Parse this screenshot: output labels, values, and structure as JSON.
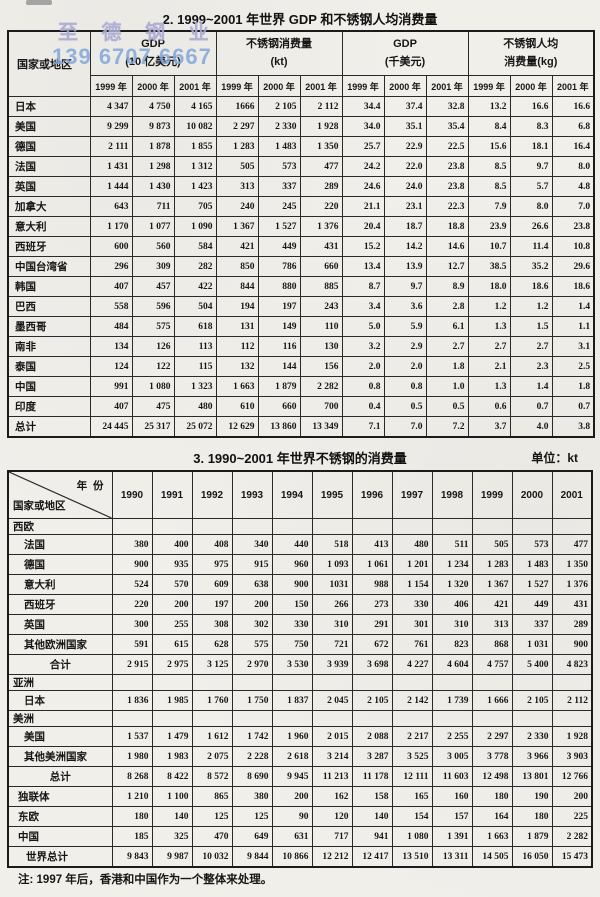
{
  "watermark": {
    "line1": "至 德 钢 业",
    "line2": "139 6707 6667"
  },
  "footnote": "注: 1997 年后，香港和中国作为一个整体来处理。",
  "table1": {
    "title": "2. 1999~2001 年世界 GDP 和不锈钢人均消费量",
    "corner": "国家或地区",
    "groups": [
      {
        "line1": "GDP",
        "line2": "(10 亿美元)"
      },
      {
        "line1": "不锈钢消费量",
        "line2": "(kt)"
      },
      {
        "line1": "GDP",
        "line2": "(千美元)"
      },
      {
        "line1": "不锈钢人均",
        "line2": "消费量(kg)"
      }
    ],
    "sub_headers": [
      "1999 年",
      "2000 年",
      "2001 年",
      "1999 年",
      "2000 年",
      "2001 年",
      "1999 年",
      "2000 年",
      "2001 年",
      "1999 年",
      "2000 年",
      "2001 年"
    ],
    "rows": [
      {
        "label": "日本",
        "type": "country",
        "values": [
          "4 347",
          "4 750",
          "4 165",
          "1666",
          "2 105",
          "2 112",
          "34.4",
          "37.4",
          "32.8",
          "13.2",
          "16.6",
          "16.6"
        ]
      },
      {
        "label": "美国",
        "type": "country",
        "values": [
          "9 299",
          "9 873",
          "10 082",
          "2 297",
          "2 330",
          "1 928",
          "34.0",
          "35.1",
          "35.4",
          "8.4",
          "8.3",
          "6.8"
        ]
      },
      {
        "label": "德国",
        "type": "country",
        "values": [
          "2 111",
          "1 878",
          "1 855",
          "1 283",
          "1 483",
          "1 350",
          "25.7",
          "22.9",
          "22.5",
          "15.6",
          "18.1",
          "16.4"
        ]
      },
      {
        "label": "法国",
        "type": "country",
        "values": [
          "1 431",
          "1 298",
          "1 312",
          "505",
          "573",
          "477",
          "24.2",
          "22.0",
          "23.8",
          "8.5",
          "9.7",
          "8.0"
        ]
      },
      {
        "label": "英国",
        "type": "country",
        "values": [
          "1 444",
          "1 430",
          "1 423",
          "313",
          "337",
          "289",
          "24.6",
          "24.0",
          "23.8",
          "8.5",
          "5.7",
          "4.8"
        ]
      },
      {
        "label": "加拿大",
        "type": "country",
        "values": [
          "643",
          "711",
          "705",
          "240",
          "245",
          "220",
          "21.1",
          "23.1",
          "22.3",
          "7.9",
          "8.0",
          "7.0"
        ]
      },
      {
        "label": "意大利",
        "type": "country",
        "values": [
          "1 170",
          "1 077",
          "1 090",
          "1 367",
          "1 527",
          "1 376",
          "20.4",
          "18.7",
          "18.8",
          "23.9",
          "26.6",
          "23.8"
        ]
      },
      {
        "label": "西班牙",
        "type": "country",
        "values": [
          "600",
          "560",
          "584",
          "421",
          "449",
          "431",
          "15.2",
          "14.2",
          "14.6",
          "10.7",
          "11.4",
          "10.8"
        ]
      },
      {
        "label": "中国台湾省",
        "type": "country",
        "values": [
          "296",
          "309",
          "282",
          "850",
          "786",
          "660",
          "13.4",
          "13.9",
          "12.7",
          "38.5",
          "35.2",
          "29.6"
        ]
      },
      {
        "label": "韩国",
        "type": "country",
        "values": [
          "407",
          "457",
          "422",
          "844",
          "880",
          "885",
          "8.7",
          "9.7",
          "8.9",
          "18.0",
          "18.6",
          "18.6"
        ]
      },
      {
        "label": "巴西",
        "type": "country",
        "values": [
          "558",
          "596",
          "504",
          "194",
          "197",
          "243",
          "3.4",
          "3.6",
          "2.8",
          "1.2",
          "1.2",
          "1.4"
        ]
      },
      {
        "label": "墨西哥",
        "type": "country",
        "values": [
          "484",
          "575",
          "618",
          "131",
          "149",
          "110",
          "5.0",
          "5.9",
          "6.1",
          "1.3",
          "1.5",
          "1.1"
        ]
      },
      {
        "label": "南非",
        "type": "country",
        "values": [
          "134",
          "126",
          "113",
          "112",
          "116",
          "130",
          "3.2",
          "2.9",
          "2.7",
          "2.7",
          "2.7",
          "3.1"
        ]
      },
      {
        "label": "泰国",
        "type": "country",
        "values": [
          "124",
          "122",
          "115",
          "132",
          "144",
          "156",
          "2.0",
          "2.0",
          "1.8",
          "2.1",
          "2.3",
          "2.5"
        ]
      },
      {
        "label": "中国",
        "type": "country",
        "values": [
          "991",
          "1 080",
          "1 323",
          "1 663",
          "1 879",
          "2 282",
          "0.8",
          "0.8",
          "1.0",
          "1.3",
          "1.4",
          "1.8"
        ]
      },
      {
        "label": "印度",
        "type": "country",
        "values": [
          "407",
          "475",
          "480",
          "610",
          "660",
          "700",
          "0.4",
          "0.5",
          "0.5",
          "0.6",
          "0.7",
          "0.7"
        ]
      },
      {
        "label": "总计",
        "type": "grand",
        "values": [
          "24 445",
          "25 317",
          "25 072",
          "12 629",
          "13 860",
          "13 349",
          "7.1",
          "7.0",
          "7.2",
          "3.7",
          "4.0",
          "3.8"
        ]
      }
    ]
  },
  "table2": {
    "title": "3. 1990~2001 年世界不锈钢的消费量",
    "unit": "单位：kt",
    "corner_top": "年  份",
    "corner_bottom": "国家或地区",
    "years": [
      "1990",
      "1991",
      "1992",
      "1993",
      "1994",
      "1995",
      "1996",
      "1997",
      "1998",
      "1999",
      "2000",
      "2001"
    ],
    "rows": [
      {
        "label": "西欧",
        "type": "section",
        "values": []
      },
      {
        "label": "法国",
        "type": "country",
        "values": [
          "380",
          "400",
          "408",
          "340",
          "440",
          "518",
          "413",
          "480",
          "511",
          "505",
          "573",
          "477"
        ]
      },
      {
        "label": "德国",
        "type": "country",
        "values": [
          "900",
          "935",
          "975",
          "915",
          "960",
          "1 093",
          "1 061",
          "1 201",
          "1 234",
          "1 283",
          "1 483",
          "1 350"
        ]
      },
      {
        "label": "意大利",
        "type": "country",
        "values": [
          "524",
          "570",
          "609",
          "638",
          "900",
          "1031",
          "988",
          "1 154",
          "1 320",
          "1 367",
          "1 527",
          "1 376"
        ]
      },
      {
        "label": "西班牙",
        "type": "country",
        "values": [
          "220",
          "200",
          "197",
          "200",
          "150",
          "266",
          "273",
          "330",
          "406",
          "421",
          "449",
          "431"
        ]
      },
      {
        "label": "英国",
        "type": "country",
        "values": [
          "300",
          "255",
          "308",
          "302",
          "330",
          "310",
          "291",
          "301",
          "310",
          "313",
          "337",
          "289"
        ]
      },
      {
        "label": "其他欧洲国家",
        "type": "country",
        "values": [
          "591",
          "615",
          "628",
          "575",
          "750",
          "721",
          "672",
          "761",
          "823",
          "868",
          "1 031",
          "900"
        ]
      },
      {
        "label": "合计",
        "type": "total",
        "values": [
          "2 915",
          "2 975",
          "3 125",
          "2 970",
          "3 530",
          "3 939",
          "3 698",
          "4 227",
          "4 604",
          "4 757",
          "5 400",
          "4 823"
        ]
      },
      {
        "label": "亚洲",
        "type": "section",
        "values": []
      },
      {
        "label": "日本",
        "type": "country",
        "values": [
          "1 836",
          "1 985",
          "1 760",
          "1 750",
          "1 837",
          "2 045",
          "2 105",
          "2 142",
          "1 739",
          "1 666",
          "2 105",
          "2 112"
        ]
      },
      {
        "label": "美洲",
        "type": "section",
        "values": []
      },
      {
        "label": "美国",
        "type": "country",
        "values": [
          "1 537",
          "1 479",
          "1 612",
          "1 742",
          "1 960",
          "2 015",
          "2 088",
          "2 217",
          "2 255",
          "2 297",
          "2 330",
          "1 928"
        ]
      },
      {
        "label": "其他美洲国家",
        "type": "country",
        "values": [
          "1 980",
          "1 983",
          "2 075",
          "2 228",
          "2 618",
          "3 214",
          "3 287",
          "3 525",
          "3 005",
          "3 778",
          "3 966",
          "3 903"
        ]
      },
      {
        "label": "总计",
        "type": "total",
        "values": [
          "8 268",
          "8 422",
          "8 572",
          "8 690",
          "9 945",
          "11 213",
          "11 178",
          "12 111",
          "11 603",
          "12 498",
          "13 801",
          "12 766"
        ]
      },
      {
        "label": "独联体",
        "type": "plain",
        "values": [
          "1 210",
          "1 100",
          "865",
          "380",
          "200",
          "162",
          "158",
          "165",
          "160",
          "180",
          "190",
          "200"
        ]
      },
      {
        "label": "东欧",
        "type": "plain",
        "values": [
          "180",
          "140",
          "125",
          "125",
          "90",
          "120",
          "140",
          "154",
          "157",
          "164",
          "180",
          "225"
        ]
      },
      {
        "label": "中国",
        "type": "plain",
        "values": [
          "185",
          "325",
          "470",
          "649",
          "631",
          "717",
          "941",
          "1 080",
          "1 391",
          "1 663",
          "1 879",
          "2 282"
        ]
      },
      {
        "label": "世界总计",
        "type": "world",
        "values": [
          "9 843",
          "9 987",
          "10 032",
          "9 844",
          "10 866",
          "12 212",
          "12 417",
          "13 510",
          "13 311",
          "14 505",
          "16 050",
          "15 473"
        ]
      }
    ]
  }
}
